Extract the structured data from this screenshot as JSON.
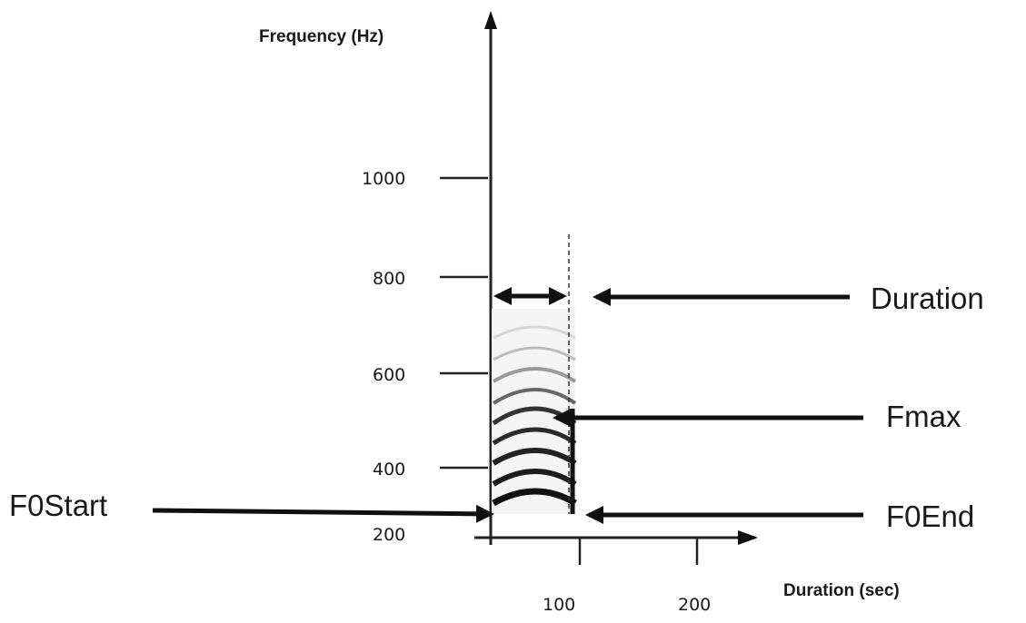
{
  "diagram": {
    "y_axis_title": "Frequency (Hz)",
    "x_axis_title": "Duration (sec)",
    "y_ticks": [
      "200",
      "400",
      "600",
      "800",
      "1000"
    ],
    "x_ticks": [
      "100",
      "200"
    ],
    "annotations": {
      "duration": "Duration",
      "fmax": "Fmax",
      "f0start": "F0Start",
      "f0end": "F0End"
    },
    "colors": {
      "ink": "#111111",
      "harmonic": "#2a2a2a"
    }
  }
}
